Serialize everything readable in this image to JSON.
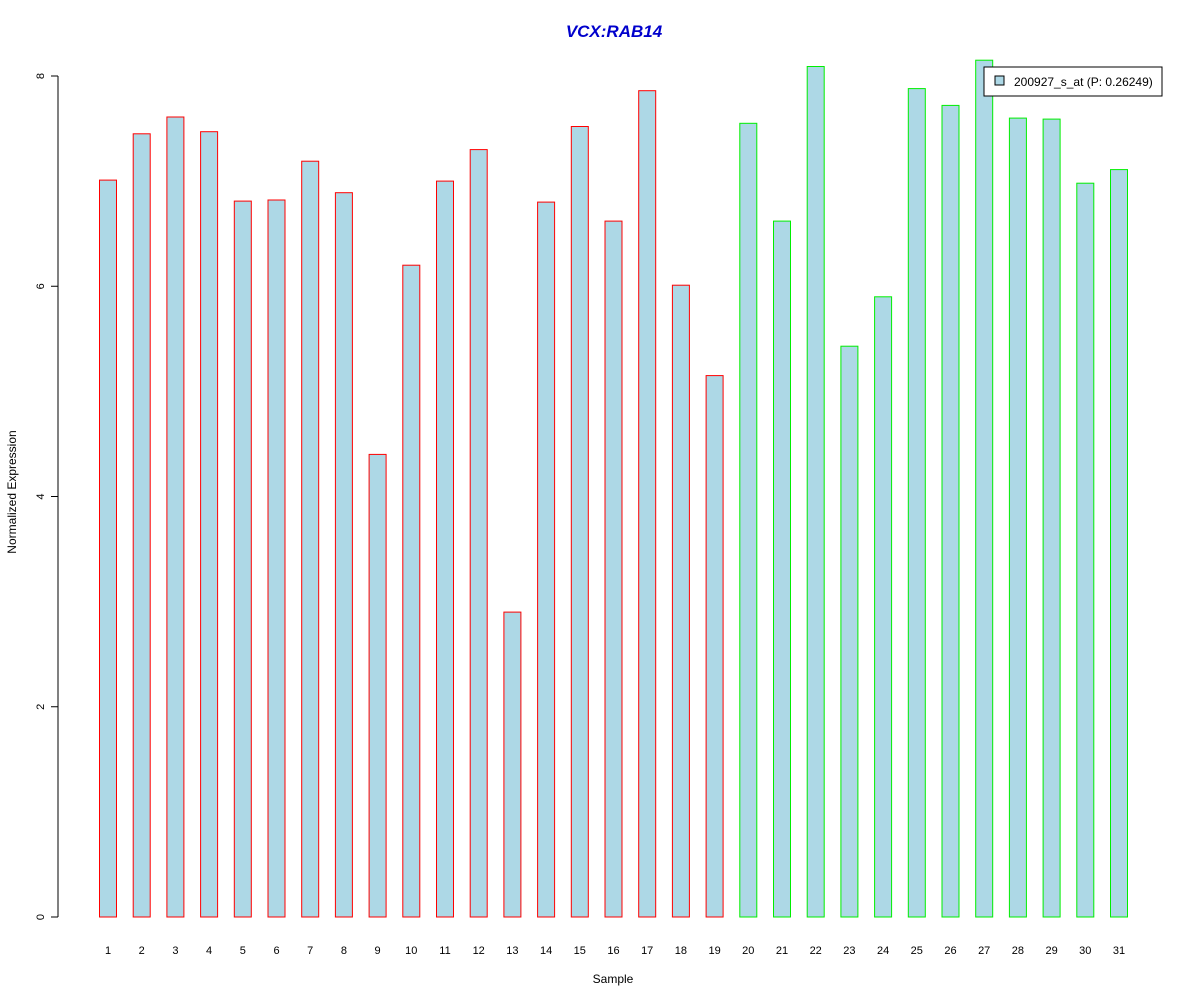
{
  "chart_data": {
    "type": "bar",
    "title": "VCX:RAB14",
    "xlabel": "Sample",
    "ylabel": "Normalized Expression",
    "ylim": [
      0,
      8
    ],
    "yticks": [
      0,
      2,
      4,
      6,
      8
    ],
    "categories": [
      "1",
      "2",
      "3",
      "4",
      "5",
      "6",
      "7",
      "8",
      "9",
      "10",
      "11",
      "12",
      "13",
      "14",
      "15",
      "16",
      "17",
      "18",
      "19",
      "20",
      "21",
      "22",
      "23",
      "24",
      "25",
      "26",
      "27",
      "28",
      "29",
      "30",
      "31"
    ],
    "series": [
      {
        "name": "200927_s_at (P: 0.26249)",
        "values": [
          7.01,
          7.45,
          7.61,
          7.47,
          6.81,
          6.82,
          7.19,
          6.89,
          4.4,
          6.2,
          7.0,
          7.3,
          2.9,
          6.8,
          7.52,
          6.62,
          7.86,
          6.01,
          5.15,
          7.55,
          6.62,
          8.09,
          5.43,
          5.9,
          7.88,
          7.72,
          8.15,
          7.6,
          7.59,
          6.98,
          7.11
        ]
      }
    ],
    "group_border_colors": [
      "#ff0000",
      "#ff0000",
      "#ff0000",
      "#ff0000",
      "#ff0000",
      "#ff0000",
      "#ff0000",
      "#ff0000",
      "#ff0000",
      "#ff0000",
      "#ff0000",
      "#ff0000",
      "#ff0000",
      "#ff0000",
      "#ff0000",
      "#ff0000",
      "#ff0000",
      "#ff0000",
      "#ff0000",
      "#00ee00",
      "#00ee00",
      "#00ee00",
      "#00ee00",
      "#00ee00",
      "#00ee00",
      "#00ee00",
      "#00ee00",
      "#00ee00",
      "#00ee00",
      "#00ee00",
      "#00ee00"
    ],
    "bar_fill": "#add8e6",
    "title_color": "#0000cc",
    "legend_position": "top-right",
    "grid": false
  }
}
